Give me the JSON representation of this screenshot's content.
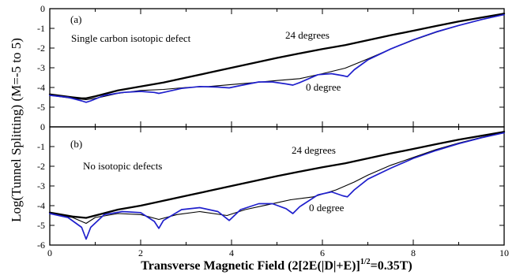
{
  "chart_data": [
    {
      "type": "line",
      "panel_label": "(a)",
      "annotation": "Single carbon isotopic defect",
      "xlim": [
        0,
        10
      ],
      "ylim": [
        -6,
        0
      ],
      "yticks": [
        0,
        -1,
        -2,
        -3,
        -4,
        -5
      ],
      "series": [
        {
          "name": "24 degrees",
          "color": "#000000",
          "x": [
            0,
            0.5,
            0.7,
            0.8,
            1.0,
            1.5,
            2,
            2.5,
            3,
            3.5,
            4,
            4.5,
            5,
            5.5,
            6,
            6.5,
            7,
            7.5,
            8,
            8.5,
            9,
            9.5,
            10
          ],
          "y": [
            -4.35,
            -4.5,
            -4.55,
            -4.55,
            -4.45,
            -4.15,
            -3.95,
            -3.75,
            -3.5,
            -3.25,
            -3.0,
            -2.75,
            -2.5,
            -2.27,
            -2.05,
            -1.85,
            -1.6,
            -1.35,
            -1.12,
            -0.88,
            -0.65,
            -0.45,
            -0.25
          ]
        },
        {
          "name": "",
          "color": "#000000",
          "x": [
            0,
            0.5,
            0.8,
            1.0,
            1.5,
            2,
            2.5,
            3,
            3.5,
            4,
            4.5,
            5,
            5.5,
            6,
            6.5,
            7,
            7.5,
            8,
            8.5,
            9,
            9.5,
            10
          ],
          "y": [
            -4.4,
            -4.55,
            -4.62,
            -4.55,
            -4.3,
            -4.15,
            -4.1,
            -4.0,
            -3.95,
            -3.85,
            -3.75,
            -3.65,
            -3.55,
            -3.3,
            -3.02,
            -2.55,
            -2.05,
            -1.6,
            -1.2,
            -0.85,
            -0.55,
            -0.3
          ]
        },
        {
          "name": "0 degree",
          "color": "#1f1fcc",
          "x": [
            0,
            0.4,
            0.7,
            0.8,
            0.9,
            1.2,
            1.6,
            2.0,
            2.3,
            2.4,
            2.5,
            2.9,
            3.3,
            3.7,
            3.95,
            4.2,
            4.6,
            4.9,
            5.2,
            5.35,
            5.5,
            5.9,
            6.2,
            6.45,
            6.55,
            6.7,
            7.0,
            7.5,
            8,
            8.5,
            9,
            9.5,
            10
          ],
          "y": [
            -4.4,
            -4.5,
            -4.68,
            -4.75,
            -4.68,
            -4.4,
            -4.25,
            -4.2,
            -4.25,
            -4.3,
            -4.25,
            -4.05,
            -3.95,
            -3.98,
            -4.02,
            -3.9,
            -3.72,
            -3.72,
            -3.82,
            -3.88,
            -3.75,
            -3.35,
            -3.3,
            -3.4,
            -3.45,
            -3.1,
            -2.6,
            -2.05,
            -1.58,
            -1.18,
            -0.85,
            -0.55,
            -0.3
          ]
        }
      ]
    },
    {
      "type": "line",
      "panel_label": "(b)",
      "annotation": "No isotopic defects",
      "xlabel": "Transverse Magnetic Field (2[2E(|D|+E)]",
      "xlabel_superscript": "1/2",
      "xlabel_tail": "=0.35T)",
      "xlim": [
        0,
        10
      ],
      "ylim": [
        -6,
        0
      ],
      "yticks": [
        0,
        -1,
        -2,
        -3,
        -4,
        -5,
        -6
      ],
      "xticks": [
        0,
        2,
        4,
        6,
        8,
        10
      ],
      "series": [
        {
          "name": "24 degrees",
          "color": "#000000",
          "x": [
            0,
            0.5,
            0.8,
            1.0,
            1.5,
            2,
            2.5,
            3,
            3.5,
            4,
            4.5,
            5,
            5.5,
            6,
            6.5,
            7,
            7.5,
            8,
            8.5,
            9,
            9.5,
            10
          ],
          "y": [
            -4.35,
            -4.55,
            -4.62,
            -4.5,
            -4.2,
            -4.0,
            -3.75,
            -3.5,
            -3.25,
            -3.0,
            -2.75,
            -2.5,
            -2.27,
            -2.05,
            -1.85,
            -1.6,
            -1.35,
            -1.12,
            -0.88,
            -0.65,
            -0.45,
            -0.25
          ]
        },
        {
          "name": "",
          "color": "#000000",
          "x": [
            0,
            0.5,
            0.8,
            1.0,
            1.5,
            2.0,
            2.4,
            2.8,
            3.3,
            3.9,
            4.3,
            4.8,
            5.3,
            5.8,
            6.3,
            6.7,
            7.0,
            7.5,
            8,
            8.5,
            9,
            9.5,
            10
          ],
          "y": [
            -4.4,
            -4.6,
            -4.9,
            -4.6,
            -4.4,
            -4.45,
            -4.7,
            -4.45,
            -4.3,
            -4.5,
            -4.2,
            -3.95,
            -3.7,
            -3.55,
            -3.2,
            -2.8,
            -2.45,
            -1.95,
            -1.55,
            -1.15,
            -0.82,
            -0.53,
            -0.28
          ]
        },
        {
          "name": "0 degree",
          "color": "#1f1fcc",
          "x": [
            0,
            0.4,
            0.7,
            0.8,
            0.9,
            1.2,
            1.6,
            2.0,
            2.3,
            2.4,
            2.5,
            2.9,
            3.3,
            3.7,
            3.95,
            4.2,
            4.6,
            4.9,
            5.2,
            5.35,
            5.5,
            5.9,
            6.2,
            6.45,
            6.55,
            6.7,
            7.0,
            7.5,
            8,
            8.5,
            9,
            9.5,
            10
          ],
          "y": [
            -4.4,
            -4.6,
            -5.1,
            -5.7,
            -5.1,
            -4.45,
            -4.3,
            -4.35,
            -4.8,
            -5.15,
            -4.75,
            -4.2,
            -4.1,
            -4.3,
            -4.75,
            -4.2,
            -3.9,
            -3.9,
            -4.15,
            -4.4,
            -4.05,
            -3.45,
            -3.3,
            -3.5,
            -3.55,
            -3.2,
            -2.65,
            -2.1,
            -1.6,
            -1.2,
            -0.85,
            -0.55,
            -0.3
          ]
        }
      ]
    }
  ],
  "shared": {
    "ylabel": "Log(Tunnel Splitting) (M=-5 to 5)",
    "top_label": "24 degrees",
    "bottom_label": "0 degree"
  },
  "colors": {
    "frame": "#000000",
    "blue_series": "#1f1fcc"
  }
}
